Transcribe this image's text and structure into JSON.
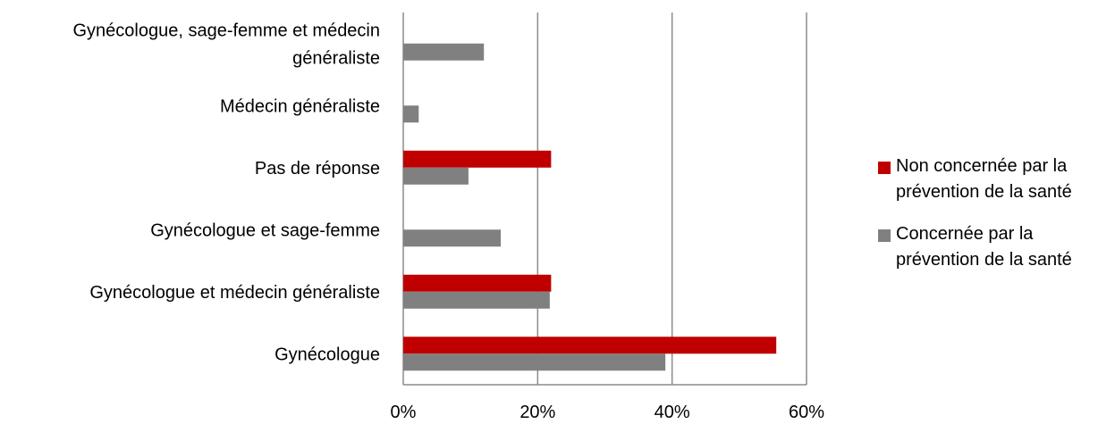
{
  "chart_data": {
    "type": "bar",
    "orientation": "horizontal",
    "categories": [
      "Gynécologue, sage-femme et médecin généraliste",
      "Médecin généraliste",
      "Pas de réponse",
      "Gynécologue et sage-femme",
      "Gynécologue et médecin généraliste",
      "Gynécologue"
    ],
    "category_lines": [
      [
        "Gynécologue, sage-femme et médecin",
        "généraliste"
      ],
      [
        "Médecin généraliste"
      ],
      [
        "Pas de réponse"
      ],
      [
        "Gynécologue et sage-femme"
      ],
      [
        "Gynécologue et médecin généraliste"
      ],
      [
        "Gynécologue"
      ]
    ],
    "series": [
      {
        "name": "Non concernée par la prévention de la santé",
        "color": "#c00000",
        "values": [
          0,
          0,
          22,
          0,
          22,
          55.5
        ]
      },
      {
        "name": "Concernée par la prévention de la santé",
        "color": "#808080",
        "values": [
          12,
          2.3,
          9.7,
          14.5,
          21.8,
          39
        ]
      }
    ],
    "xlim": [
      0,
      60
    ],
    "xticks": [
      0,
      20,
      40,
      60
    ],
    "xtick_labels": [
      "0%",
      "20%",
      "40%",
      "60%"
    ],
    "grid": true,
    "legend_position": "right",
    "title": "",
    "xlabel": "",
    "ylabel": ""
  },
  "legend": {
    "items": [
      {
        "label_lines": [
          "Non concernée par la",
          "prévention de la santé"
        ],
        "color": "#c00000"
      },
      {
        "label_lines": [
          "Concernée par la",
          "prévention de la santé"
        ],
        "color": "#808080"
      }
    ]
  }
}
